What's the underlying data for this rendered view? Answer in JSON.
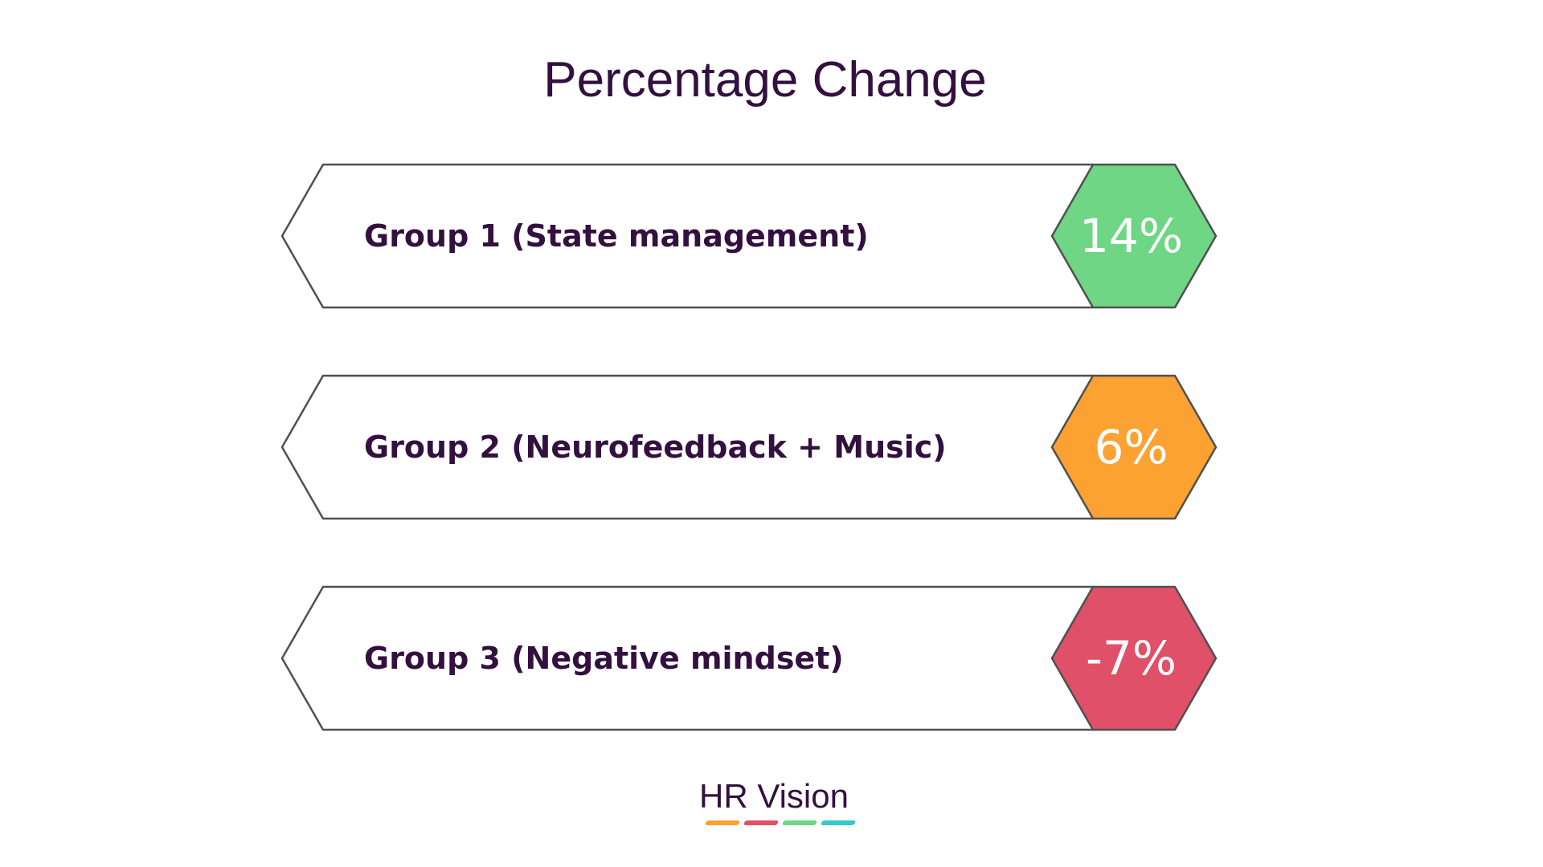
{
  "title": "Percentage Change",
  "groups": [
    {
      "label": "Group 1 (State management)",
      "value": "14%",
      "color": "#6ed685"
    },
    {
      "label": "Group 2 (Neurofeedback + Music)",
      "value": "6%",
      "color": "#fca233"
    },
    {
      "label": "Group 3 (Negative mindset)",
      "value": "-7%",
      "color": "#e05068"
    }
  ],
  "logo": {
    "text": "HR Vision",
    "stripe_colors": [
      "#fca233",
      "#e05068",
      "#6ed685",
      "#35c9c9"
    ]
  }
}
